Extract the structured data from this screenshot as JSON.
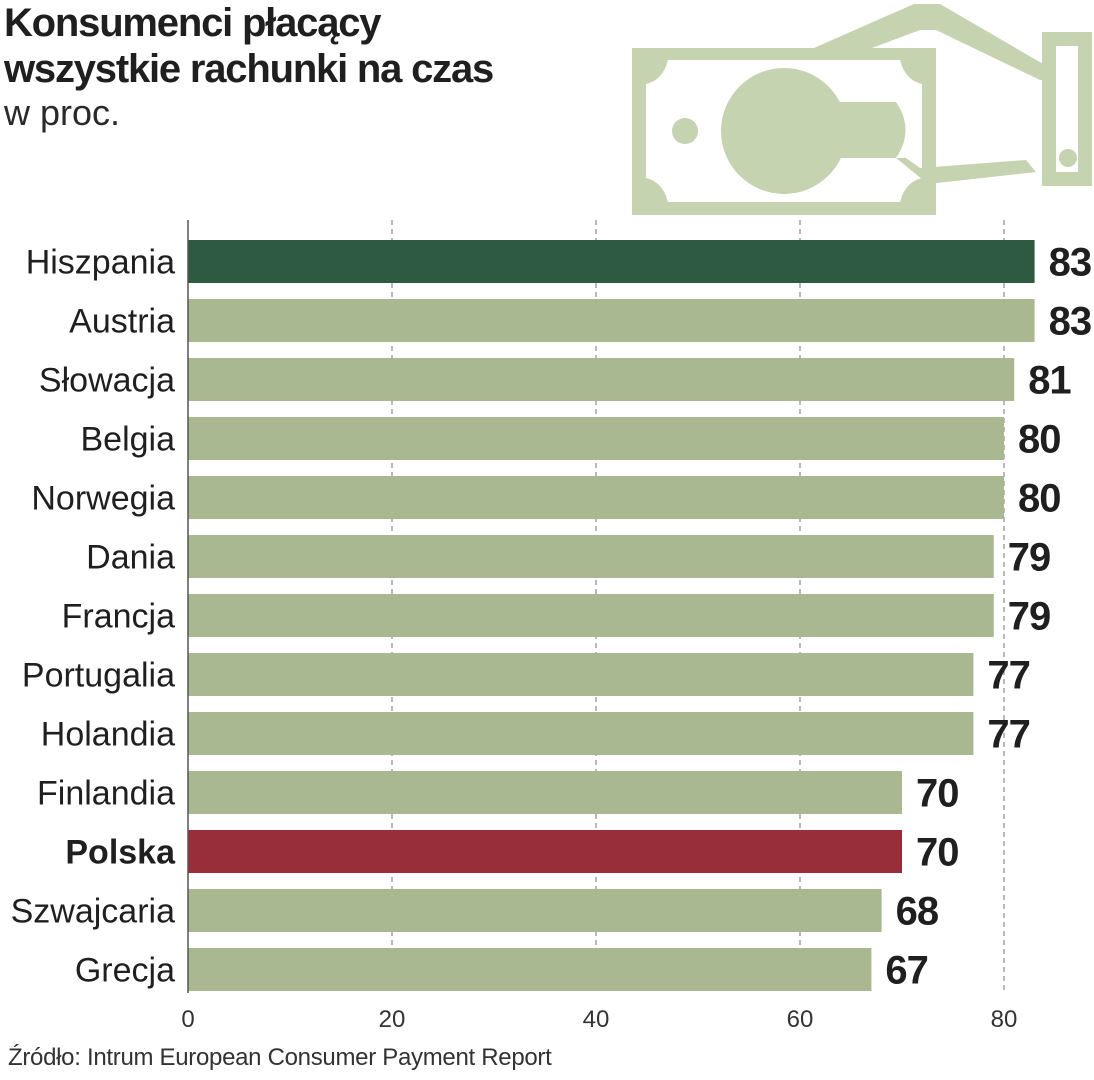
{
  "header": {
    "title_line1": "Konsumenci płacący",
    "title_line2": "wszystkie rachunki na czas",
    "subtitle": "w proc."
  },
  "icon": {
    "name": "hand-paying-banknote-icon",
    "color": "#c5d3b1"
  },
  "colors": {
    "bar_default": "#a9b891",
    "bar_highlight_top": "#2d5a41",
    "bar_highlight_poland": "#972e39",
    "text": "#1f1f1f",
    "grid": "#8a8a8a"
  },
  "chart_data": {
    "type": "bar",
    "orientation": "horizontal",
    "title": "Konsumenci płacący wszystkie rachunki na czas",
    "subtitle": "w proc.",
    "categories": [
      "Hiszpania",
      "Austria",
      "Słowacja",
      "Belgia",
      "Norwegia",
      "Dania",
      "Francja",
      "Portugalia",
      "Holandia",
      "Finlandia",
      "Polska",
      "Szwajcaria",
      "Grecja"
    ],
    "values": [
      83,
      83,
      81,
      80,
      80,
      79,
      79,
      77,
      77,
      70,
      70,
      68,
      67
    ],
    "highlight": {
      "Hiszpania": "top",
      "Polska": "poland"
    },
    "bold_categories": [
      "Polska"
    ],
    "xlim": [
      0,
      88
    ],
    "xticks": [
      0,
      20,
      40,
      60,
      80
    ],
    "grid": true,
    "xlabel": "",
    "ylabel": ""
  },
  "footer": {
    "source": "Źródło: Intrum European Consumer Payment Report"
  }
}
